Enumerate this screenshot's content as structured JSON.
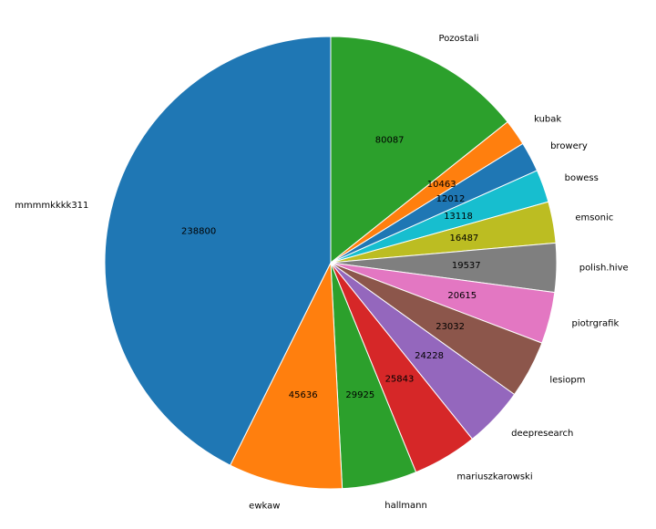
{
  "chart_data": {
    "type": "pie",
    "title": "",
    "slices": [
      {
        "label": "Pozostali",
        "value": 80087,
        "color": "#2ca02c"
      },
      {
        "label": "kubak",
        "value": 10463,
        "color": "#ff7f0e"
      },
      {
        "label": "browery",
        "value": 12012,
        "color": "#1f77b4"
      },
      {
        "label": "bowess",
        "value": 13118,
        "color": "#17becf"
      },
      {
        "label": "emsonic",
        "value": 16487,
        "color": "#bcbd22"
      },
      {
        "label": "polish.hive",
        "value": 19537,
        "color": "#7f7f7f"
      },
      {
        "label": "piotrgrafik",
        "value": 20615,
        "color": "#e377c2"
      },
      {
        "label": "lesiopm",
        "value": 23032,
        "color": "#8c564b"
      },
      {
        "label": "deepresearch",
        "value": 24228,
        "color": "#9467bd"
      },
      {
        "label": "mariuszkarowski",
        "value": 25843,
        "color": "#d62728"
      },
      {
        "label": "hallmann",
        "value": 29925,
        "color": "#2ca02c"
      },
      {
        "label": "ewkaw",
        "value": 45636,
        "color": "#ff7f0e"
      },
      {
        "label": "mmmmkkkk311",
        "value": 238800,
        "color": "#1f77b4"
      }
    ],
    "start_angle_deg": 90,
    "direction": "clockwise",
    "value_labels_shown": true,
    "legend": "none"
  }
}
